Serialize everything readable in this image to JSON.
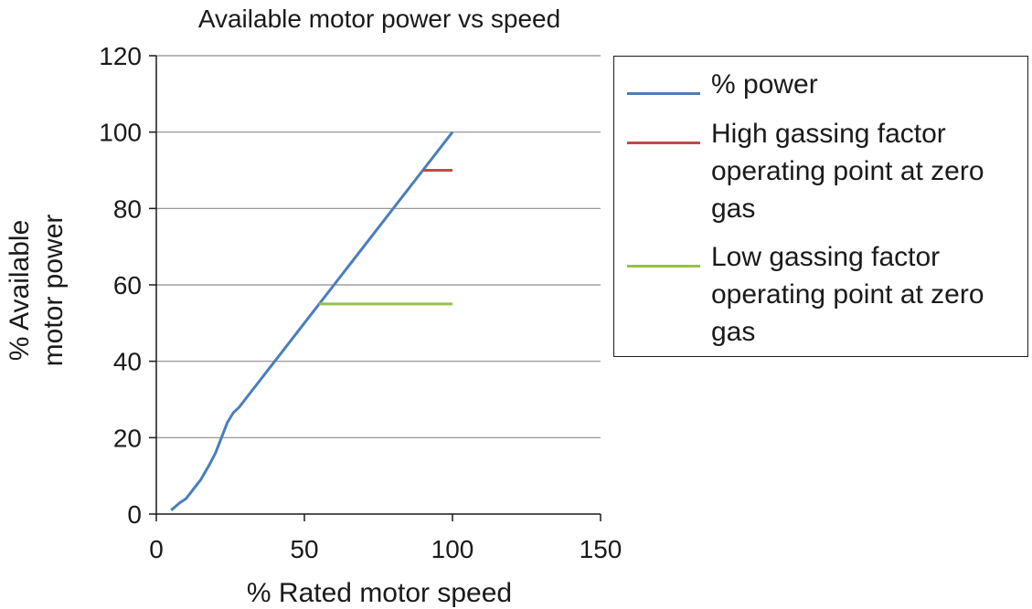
{
  "chart_data": {
    "type": "line",
    "title": "Available motor power vs speed",
    "xlabel": "% Rated motor speed",
    "ylabel_lines": [
      "% Available",
      "motor power"
    ],
    "xlim": [
      0,
      150
    ],
    "ylim": [
      0,
      120
    ],
    "xticks": [
      0,
      50,
      100,
      150
    ],
    "yticks": [
      0,
      20,
      40,
      60,
      80,
      100,
      120
    ],
    "grid": "horizontal",
    "legend_position": "right",
    "series": [
      {
        "name": "% power",
        "color": "#4a7ebb",
        "x": [
          5,
          8,
          10,
          12,
          15,
          18,
          20,
          22,
          24,
          26,
          28,
          30,
          40,
          50,
          55,
          60,
          70,
          80,
          90,
          100
        ],
        "y": [
          1,
          3,
          4,
          6,
          9,
          13,
          16,
          20,
          24,
          26.5,
          28,
          30,
          40,
          50,
          55,
          60,
          70,
          80,
          90,
          100
        ]
      },
      {
        "name": "High gassing factor operating point at zero gas",
        "color": "#be4b48",
        "x": [
          90,
          100
        ],
        "y": [
          90,
          90
        ]
      },
      {
        "name": "Low gassing factor operating point at zero gas",
        "color": "#98c04c",
        "x": [
          55,
          100
        ],
        "y": [
          55,
          55
        ]
      }
    ]
  }
}
